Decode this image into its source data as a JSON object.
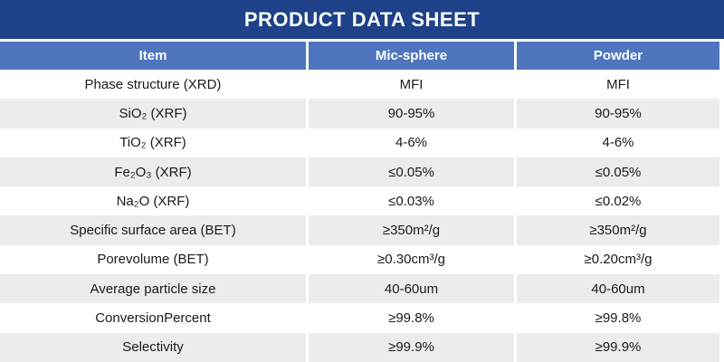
{
  "title": "PRODUCT DATA SHEET",
  "colors": {
    "title_bar_bg": "#1E4189",
    "header_row_bg": "#4E75BD",
    "stripe_bg": "#ECECEC",
    "body_text": "#1a1a1a",
    "header_text": "#ffffff"
  },
  "table": {
    "columns": {
      "item": "Item",
      "mic_sphere": "Mic-sphere",
      "powder": "Powder"
    },
    "rows": [
      {
        "item": "Phase structure (XRD)",
        "mic_sphere": "MFI",
        "powder": "MFI"
      },
      {
        "item": "SiO₂ (XRF)",
        "mic_sphere": "90-95%",
        "powder": "90-95%"
      },
      {
        "item": "TiO₂ (XRF)",
        "mic_sphere": "4-6%",
        "powder": "4-6%"
      },
      {
        "item": "Fe₂O₃ (XRF)",
        "mic_sphere": "≤0.05%",
        "powder": "≤0.05%"
      },
      {
        "item": "Na₂O (XRF)",
        "mic_sphere": "≤0.03%",
        "powder": "≤0.02%"
      },
      {
        "item": "Specific surface area (BET)",
        "mic_sphere": "≥350m²/g",
        "powder": "≥350m²/g"
      },
      {
        "item": "Porevolume (BET)",
        "mic_sphere": "≥0.30cm³/g",
        "powder": "≥0.20cm³/g"
      },
      {
        "item": "Average particle size",
        "mic_sphere": "40-60um",
        "powder": "40-60um"
      },
      {
        "item": "ConversionPercent",
        "mic_sphere": "≥99.8%",
        "powder": "≥99.8%"
      },
      {
        "item": "Selectivity",
        "mic_sphere": "≥99.9%",
        "powder": "≥99.9%"
      }
    ]
  }
}
